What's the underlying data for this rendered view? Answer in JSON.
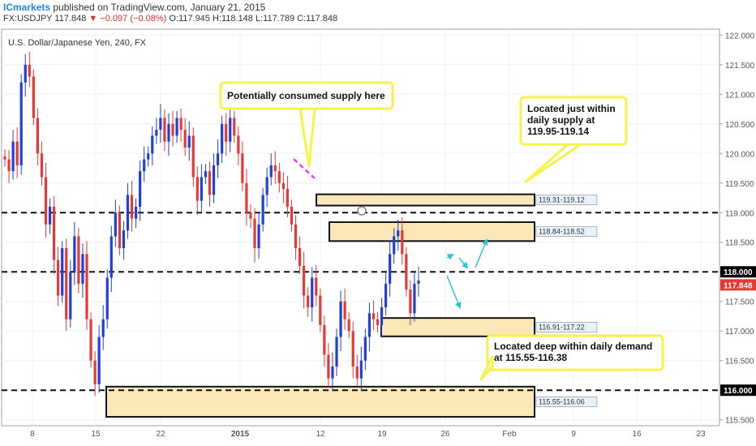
{
  "header": {
    "brand": "ICmarkets",
    "published": "published on TradingView.com, January 21, 2015",
    "symbol": "FX:USDJPY",
    "last": "117.848",
    "change": "−0.097 (−0.08%)",
    "ohlc": "O:117.945 H:118.148 L:117.789 C:117.848"
  },
  "chart_data": {
    "type": "candlestick",
    "title": "U.S. Dollar/Japanese Yen, 240, FX",
    "ylim": [
      115.4,
      122.1
    ],
    "y_ticks": [
      "122.000",
      "121.500",
      "121.000",
      "120.500",
      "120.000",
      "119.500",
      "119.000",
      "118.500",
      "118.000",
      "117.500",
      "117.000",
      "116.500",
      "116.000",
      "115.500"
    ],
    "x_ticks": [
      "8",
      "15",
      "22",
      "2015",
      "12",
      "19",
      "26",
      "Feb",
      "9",
      "16",
      "23"
    ],
    "price_labels": [
      {
        "text": "118.000",
        "value": 118.0
      },
      {
        "text": "117.848",
        "value": 117.848
      },
      {
        "text": "116.000",
        "value": 116.0
      }
    ],
    "horizontal_lines": [
      119.0,
      118.0,
      116.0
    ],
    "zones": [
      {
        "label": "119.31-119.12",
        "top": 119.31,
        "bottom": 119.12
      },
      {
        "label": "118.84-118.52",
        "top": 118.84,
        "bottom": 118.52
      },
      {
        "label": "116.91-117.22",
        "top": 117.22,
        "bottom": 116.91
      },
      {
        "label": "115.55-116.06",
        "top": 116.06,
        "bottom": 115.55
      }
    ],
    "annotations": [
      {
        "text": [
          "Potentially consumed supply here"
        ]
      },
      {
        "text": [
          "Located just within",
          "daily supply at",
          "119.95-119.14"
        ]
      },
      {
        "text": [
          "Located deep within daily demand",
          "at 115.55-116.38"
        ]
      }
    ],
    "series": [
      {
        "name": "up",
        "color": "#1f3fd6"
      },
      {
        "name": "down",
        "color": "#e53935"
      }
    ],
    "close_path": [
      119.9,
      119.7,
      120.2,
      119.8,
      121.2,
      121.5,
      121.3,
      120.6,
      120.0,
      119.6,
      118.8,
      119.1,
      118.2,
      117.6,
      118.4,
      117.2,
      118.0,
      118.6,
      117.8,
      118.3,
      117.2,
      116.5,
      116.1,
      116.9,
      117.2,
      117.9,
      118.6,
      119.0,
      118.4,
      118.7,
      119.3,
      118.9,
      119.1,
      119.7,
      119.9,
      120.0,
      120.3,
      120.4,
      120.6,
      120.2,
      120.5,
      120.3,
      120.6,
      120.4,
      120.1,
      120.3,
      119.6,
      119.2,
      119.6,
      119.7,
      119.3,
      119.8,
      120.0,
      120.5,
      120.2,
      120.6,
      120.3,
      120.0,
      119.5,
      119.0,
      118.9,
      118.4,
      118.8,
      119.3,
      119.6,
      119.8,
      119.7,
      119.5,
      119.4,
      119.1,
      118.8,
      118.4,
      118.1,
      117.6,
      117.4,
      117.9,
      117.6,
      117.1,
      116.6,
      116.2,
      116.4,
      116.9,
      117.5,
      117.2,
      117.0,
      116.4,
      116.2,
      116.5,
      116.9,
      117.3,
      117.2,
      117.1,
      117.4,
      117.8,
      118.3,
      118.6,
      118.7,
      118.3,
      117.7,
      117.3,
      117.8,
      117.85
    ]
  }
}
